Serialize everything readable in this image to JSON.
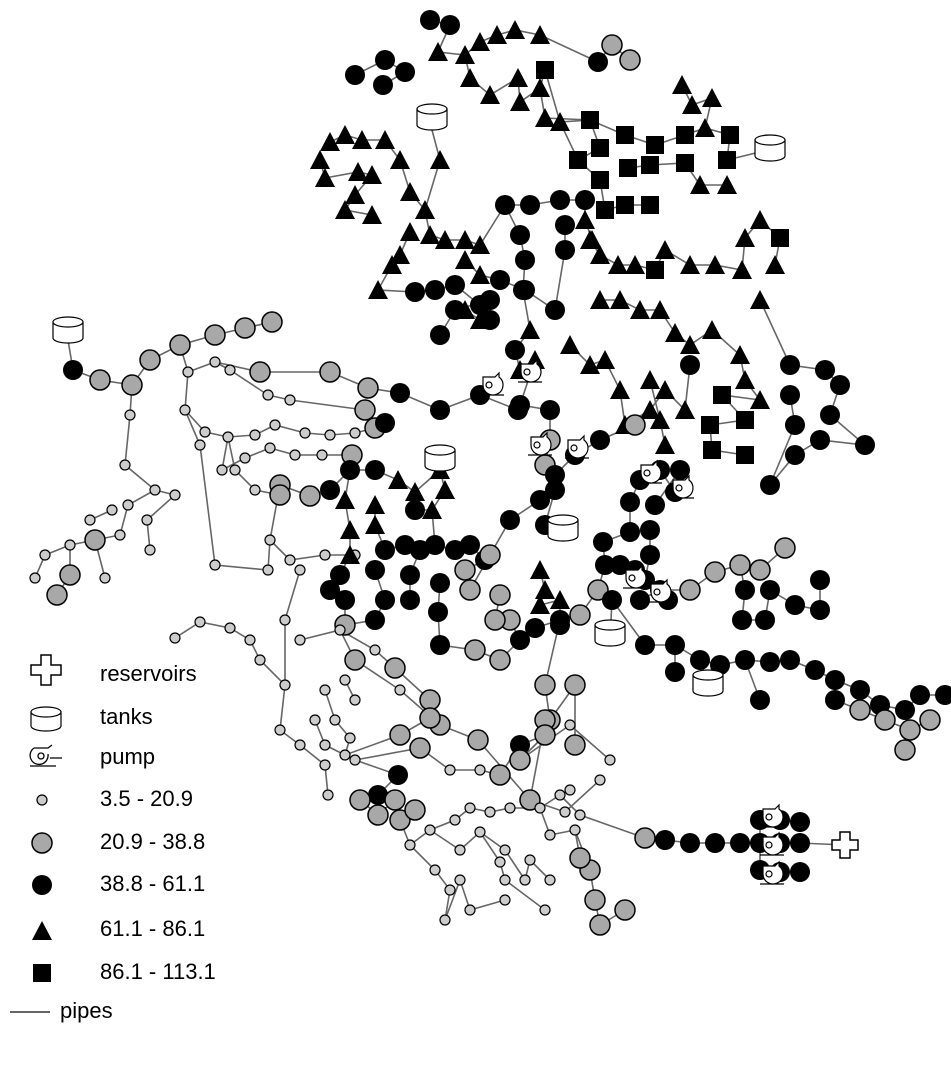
{
  "legend": [
    "reservoirs",
    "tanks",
    "pump",
    "3.5 - 20.9",
    "20.9 - 38.8",
    "38.8 - 61.1",
    "61.1 - 86.1",
    "86.1 - 113.1",
    "pipes"
  ]
}
